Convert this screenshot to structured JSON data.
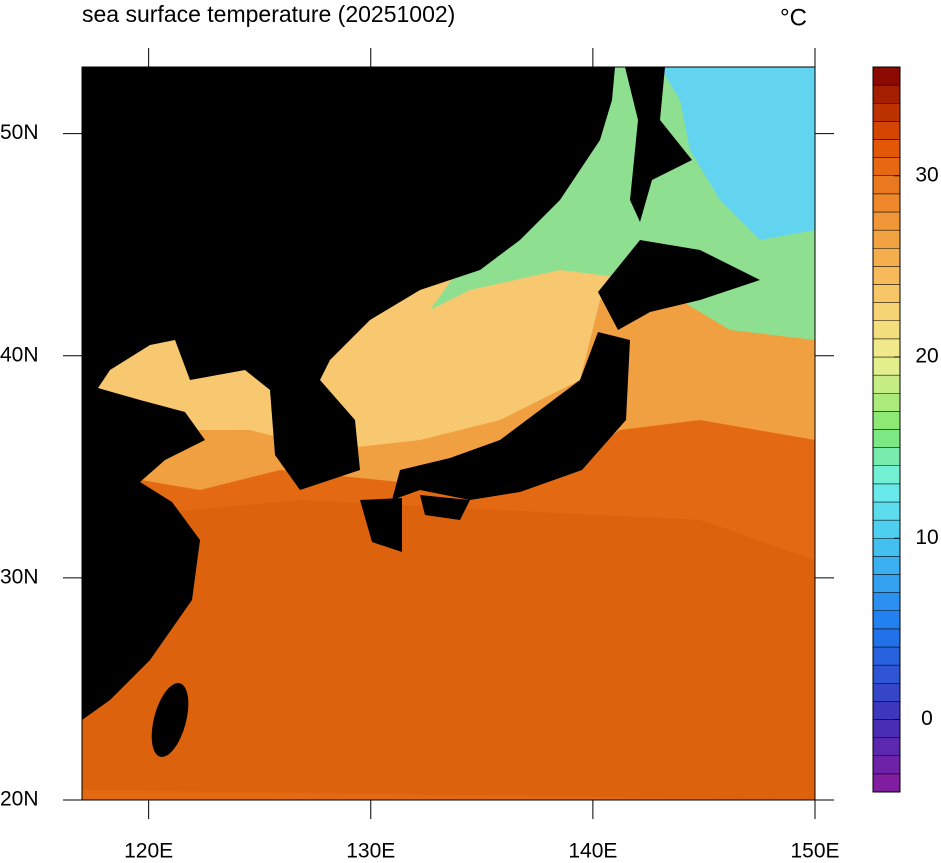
{
  "title": "sea surface temperature (20251002)",
  "unit": "°C",
  "map": {
    "lon_range": [
      117,
      150
    ],
    "lat_range": [
      20,
      53
    ],
    "lon_ticks": [
      {
        "value": 120,
        "label": "120E"
      },
      {
        "value": 130,
        "label": "130E"
      },
      {
        "value": 140,
        "label": "140E"
      },
      {
        "value": 150,
        "label": "150E"
      }
    ],
    "lat_ticks": [
      {
        "value": 20,
        "label": "20N"
      },
      {
        "value": 30,
        "label": "30N"
      },
      {
        "value": 40,
        "label": "40N"
      },
      {
        "value": 50,
        "label": "50N"
      }
    ]
  },
  "colorbar": {
    "range": [
      -4,
      36
    ],
    "step": 1,
    "ticks": [
      0,
      10,
      20,
      30
    ]
  }
}
